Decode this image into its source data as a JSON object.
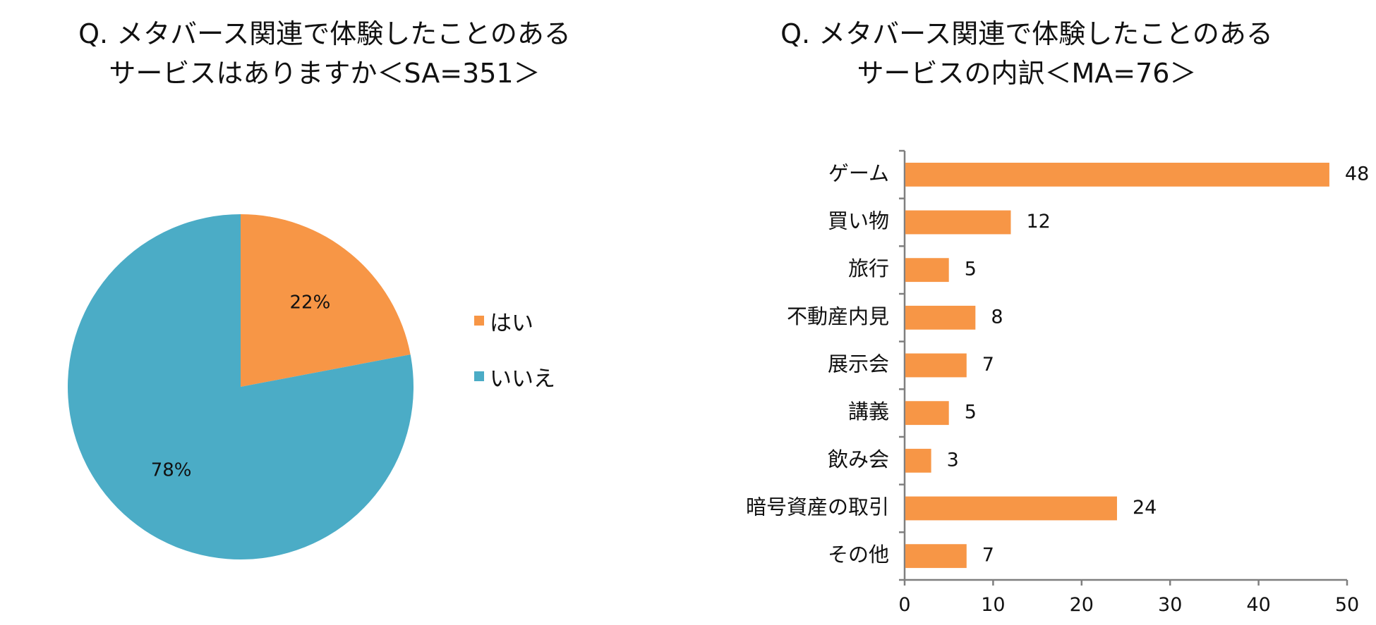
{
  "left_chart": {
    "title_line1": "Q. メタバース関連で体験したことのある",
    "title_line2": "サービスはありますか＜SA=351＞"
  },
  "right_chart": {
    "title_line1": "Q. メタバース関連で体験したことのある",
    "title_line2": "サービスの内訳＜MA=76＞"
  },
  "colors": {
    "orange": "#F79646",
    "blue": "#4BACC6",
    "axis": "#7f7f7f"
  },
  "chart_data": [
    {
      "type": "pie",
      "title": "Q. メタバース関連で体験したことのある サービスはありますか＜SA=351＞",
      "categories": [
        "はい",
        "いいえ"
      ],
      "values": [
        22,
        78
      ],
      "data_labels": [
        "22%",
        "78%"
      ],
      "colors": [
        "#F79646",
        "#4BACC6"
      ],
      "legend": "right"
    },
    {
      "type": "bar",
      "orientation": "horizontal",
      "title": "Q. メタバース関連で体験したことのある サービスの内訳＜MA=76＞",
      "categories": [
        "ゲーム",
        "買い物",
        "旅行",
        "不動産内見",
        "展示会",
        "講義",
        "飲み会",
        "暗号資産の取引",
        "その他"
      ],
      "values": [
        48,
        12,
        5,
        8,
        7,
        5,
        3,
        24,
        7
      ],
      "xlim": [
        0,
        50
      ],
      "xticks": [
        "0",
        "10",
        "20",
        "30",
        "40",
        "50"
      ],
      "color": "#F79646",
      "grid": false
    }
  ]
}
